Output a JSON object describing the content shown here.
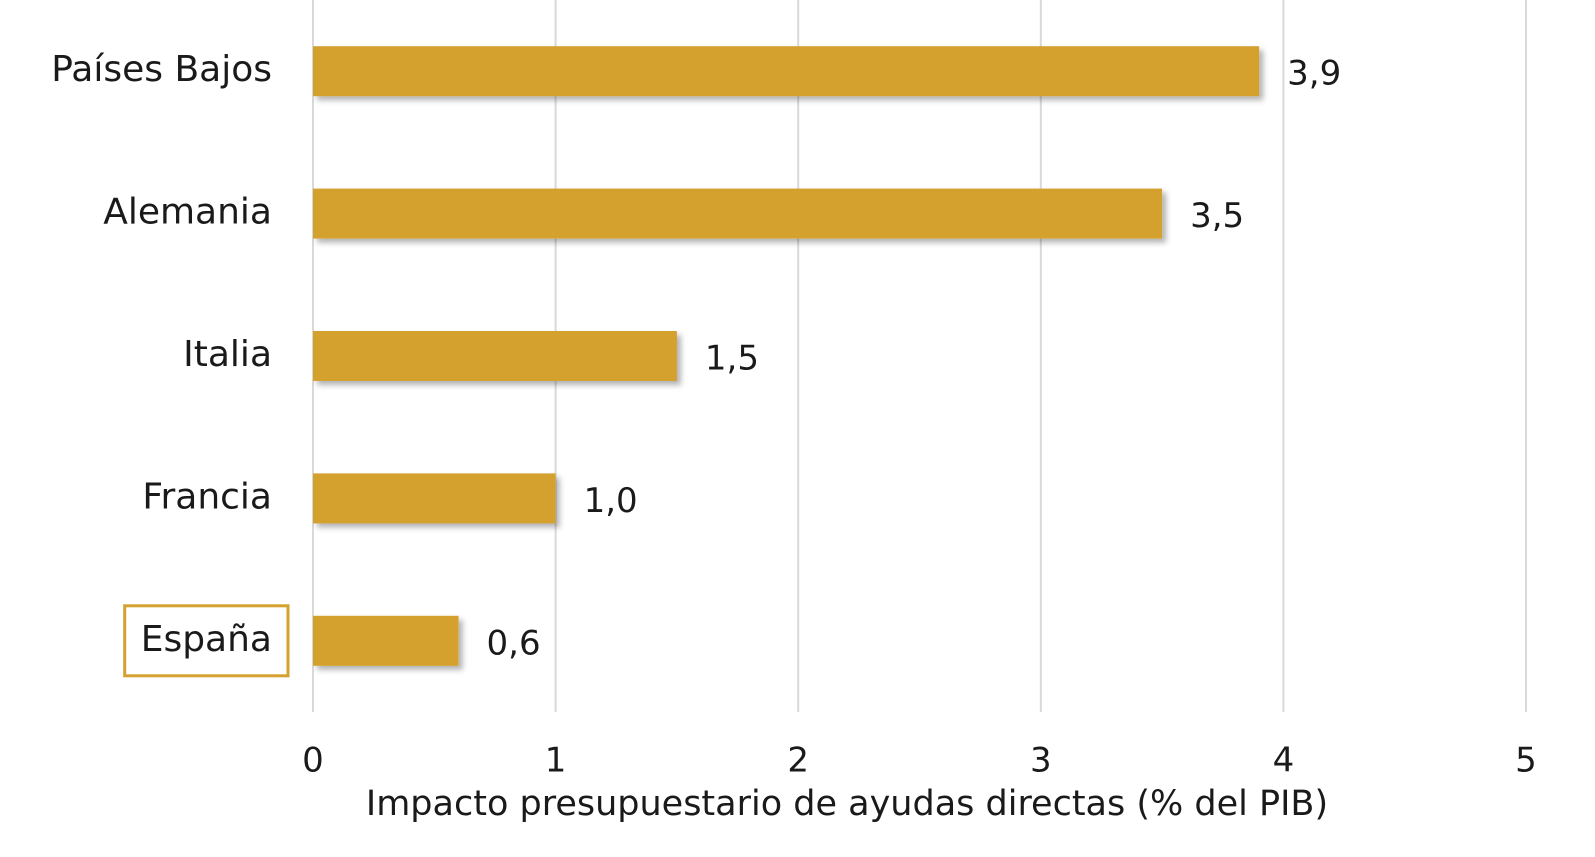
{
  "chart_data": {
    "type": "bar",
    "orientation": "horizontal",
    "categories": [
      "Países Bajos",
      "Alemania",
      "Italia",
      "Francia",
      "España"
    ],
    "values": [
      3.9,
      3.5,
      1.5,
      1.0,
      0.6
    ],
    "value_labels": [
      "3,9",
      "3,5",
      "1,5",
      "1,0",
      "0,6"
    ],
    "color": "#d4a02f",
    "xlim": [
      0,
      5
    ],
    "xticks": [
      0,
      1,
      2,
      3,
      4,
      5
    ],
    "xlabel": "Impacto presupuestario de ayudas directas (% del PIB)",
    "grid": true,
    "highlight_categories": [
      4
    ]
  }
}
